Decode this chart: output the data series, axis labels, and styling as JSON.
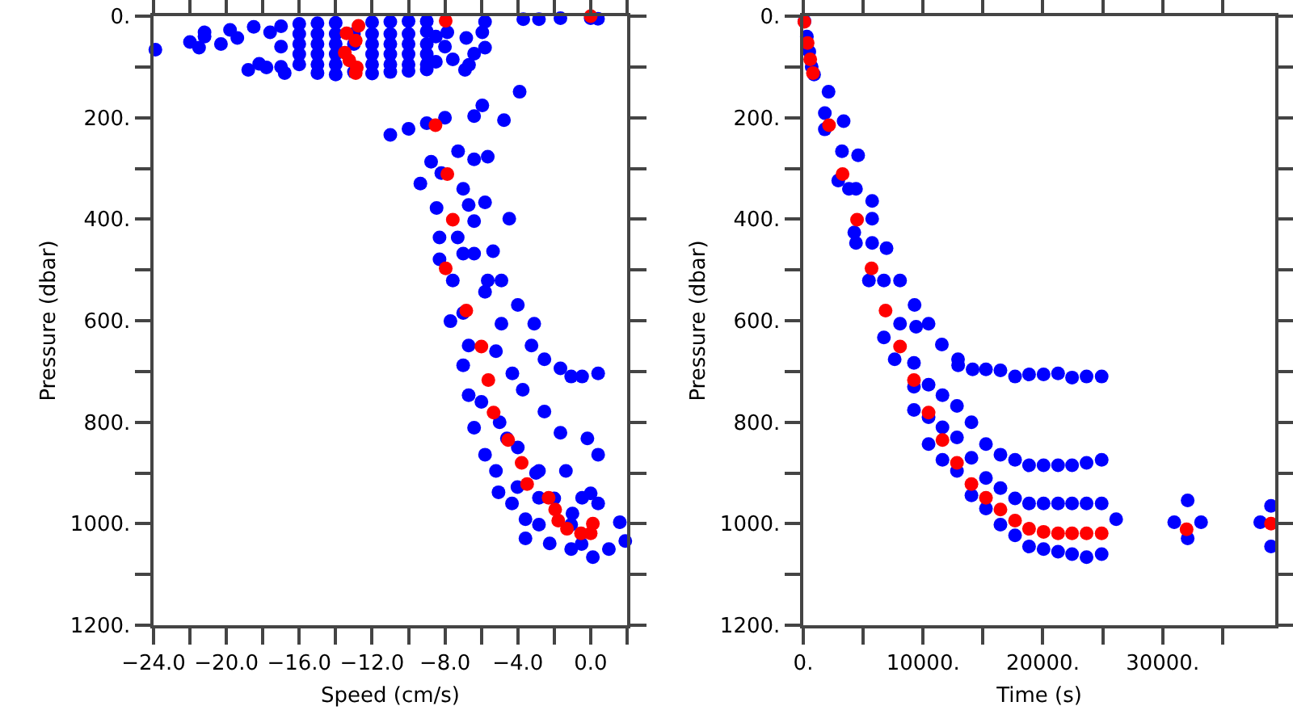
{
  "chart_data": [
    {
      "type": "scatter",
      "xlabel": "Speed (cm/s)",
      "ylabel": "Pressure (dbar)",
      "marker": "circle",
      "xlim": [
        -24,
        2
      ],
      "ylim": [
        1200,
        0
      ],
      "xticks": [
        {
          "value": -24,
          "label": "−24.0"
        },
        {
          "value": -22,
          "label": null
        },
        {
          "value": -20,
          "label": "−20.0"
        },
        {
          "value": -18,
          "label": null
        },
        {
          "value": -16,
          "label": "−16.0"
        },
        {
          "value": -14,
          "label": null
        },
        {
          "value": -12,
          "label": "−12.0"
        },
        {
          "value": -10,
          "label": null
        },
        {
          "value": -8,
          "label": "−8.0"
        },
        {
          "value": -6,
          "label": null
        },
        {
          "value": -4,
          "label": "−4.0"
        },
        {
          "value": -2,
          "label": null
        },
        {
          "value": 0,
          "label": "0.0"
        },
        {
          "value": 2,
          "label": null
        }
      ],
      "yticks": [
        {
          "value": 0,
          "label": "0."
        },
        {
          "value": 100,
          "label": null
        },
        {
          "value": 200,
          "label": "200."
        },
        {
          "value": 300,
          "label": null
        },
        {
          "value": 400,
          "label": "400."
        },
        {
          "value": 500,
          "label": null
        },
        {
          "value": 600,
          "label": "600."
        },
        {
          "value": 700,
          "label": null
        },
        {
          "value": 800,
          "label": "800."
        },
        {
          "value": 900,
          "label": null
        },
        {
          "value": 1000,
          "label": "1000."
        },
        {
          "value": 1100,
          "label": null
        },
        {
          "value": 1200,
          "label": "1200."
        }
      ],
      "series": [
        {
          "color": "#0000ff",
          "x": [
            -23.9,
            -22,
            -21.5,
            -21.2,
            -21.2,
            -20.3,
            -19.8,
            -19.4,
            -18.8,
            -18.5,
            -18.2,
            -17.8,
            -17.6,
            -17,
            -17,
            -17,
            -16.8,
            -16,
            -16,
            -16,
            -16,
            -16,
            -15,
            -15,
            -15,
            -15,
            -15,
            -15,
            -14,
            -14,
            -14,
            -14,
            -14,
            -14,
            -13,
            -13,
            -13,
            -12,
            -12,
            -12,
            -12,
            -12,
            -12,
            -11,
            -11,
            -11,
            -11,
            -11,
            -11,
            -10,
            -10,
            -10,
            -10,
            -10,
            -10,
            -9,
            -9,
            -9,
            -9,
            -9,
            -9,
            -8.5,
            -8.5,
            -8,
            -7.87,
            -7.57,
            -6.83,
            -6.68,
            -6.4,
            -5.8,
            -5.95,
            -6.9,
            -5.8,
            -3.7,
            -2.84,
            -1.66,
            0,
            0.4,
            -11,
            -10,
            -9,
            -8,
            -6.4,
            -5.95,
            -3.9,
            -4.76,
            -9.35,
            -8.76,
            -7.28,
            -6.4,
            -5.65,
            -8.2,
            -7,
            -5.8,
            -8.46,
            -8.3,
            -6.7,
            -6.4,
            -7.3,
            -4.47,
            -8.3,
            -7.57,
            -6.4,
            -5.65,
            -5.36,
            -4.9,
            -7,
            -7.7,
            -7,
            -5.8,
            -4.9,
            -4,
            -3.1,
            -3.25,
            -2.54,
            -6.7,
            -5.2,
            -7,
            -6.7,
            -6.4,
            -5.8,
            -5.2,
            -5.06,
            -4.32,
            -3.58,
            -3.58,
            -2.84,
            -2.25,
            -1.07,
            0.12,
            1,
            1.6,
            1.9,
            0.41,
            0.41,
            -0.18,
            -1.66,
            -2.54,
            -3.73,
            -4.3,
            -1.66,
            -0.47,
            0.41,
            -1.07,
            -2.84,
            -1.36,
            -0.47,
            -2.84,
            -1.07,
            -4.6,
            -4.02,
            -6,
            -5,
            -4,
            -3,
            -2,
            -1,
            0,
            -0.5
          ],
          "values": [
            66,
            51,
            62,
            32,
            40,
            55,
            27,
            43,
            106,
            21,
            94,
            101,
            32,
            20,
            60,
            100,
            112,
            15,
            35,
            55,
            75,
            95,
            14,
            35,
            55,
            75,
            95,
            112,
            13,
            35,
            55,
            75,
            95,
            115,
            35,
            55,
            110,
            12,
            35,
            55,
            75,
            95,
            113,
            11,
            35,
            55,
            75,
            95,
            110,
            10,
            35,
            55,
            75,
            95,
            108,
            10,
            30,
            55,
            75,
            95,
            105,
            40,
            90,
            60,
            32,
            85,
            43,
            96,
            74,
            62,
            32,
            106,
            11,
            6,
            6,
            4,
            4,
            5,
            234,
            222,
            211,
            200,
            197,
            176,
            149,
            205,
            330,
            287,
            266,
            282,
            277,
            309,
            340,
            367,
            378,
            436,
            372,
            404,
            436,
            399,
            479,
            521,
            468,
            521,
            463,
            521,
            468,
            601,
            585,
            543,
            606,
            569,
            606,
            649,
            676,
            649,
            660,
            688,
            747,
            811,
            864,
            896,
            938,
            960,
            991,
            1029,
            1002,
            1039,
            1050,
            1066,
            1050,
            997,
            1034,
            960,
            864,
            832,
            821,
            779,
            736,
            704,
            694,
            710,
            704,
            710,
            896,
            896,
            949,
            949,
            1002,
            832,
            928,
            760,
            800,
            850,
            900,
            950,
            980,
            940,
            1040
          ]
        },
        {
          "color": "#ff0000",
          "x": [
            0,
            -7.96,
            -12.75,
            -13.4,
            -12.9,
            -13.5,
            -13.25,
            -12.84,
            -12.9,
            -8.52,
            -7.87,
            -7.57,
            -7.96,
            -6.83,
            -6,
            -5.62,
            -5.33,
            -4.53,
            -3.79,
            -3.49,
            -2.31,
            -1.95,
            -1.78,
            -1.3,
            -0.53,
            0.12,
            0
          ],
          "values": [
            0,
            9,
            19,
            34,
            48,
            72,
            87,
            101,
            112,
            215,
            311,
            401,
            497,
            580,
            651,
            717,
            781,
            835,
            880,
            922,
            949,
            972,
            994,
            1010,
            1019,
            1000,
            1019
          ]
        }
      ]
    },
    {
      "type": "scatter",
      "xlabel": "Time (s)",
      "ylabel": "Pressure (dbar)",
      "marker": "circle",
      "xlim": [
        0,
        39400
      ],
      "ylim": [
        1200,
        0
      ],
      "xticks": [
        {
          "value": 0,
          "label": "0."
        },
        {
          "value": 5000,
          "label": null
        },
        {
          "value": 10000,
          "label": "10000."
        },
        {
          "value": 15000,
          "label": null
        },
        {
          "value": 20000,
          "label": "20000."
        },
        {
          "value": 25000,
          "label": null
        },
        {
          "value": 30000,
          "label": "30000."
        },
        {
          "value": 35000,
          "label": null
        }
      ],
      "yticks": [
        {
          "value": 0,
          "label": "0."
        },
        {
          "value": 100,
          "label": null
        },
        {
          "value": 200,
          "label": "200."
        },
        {
          "value": 300,
          "label": null
        },
        {
          "value": 400,
          "label": "400."
        },
        {
          "value": 500,
          "label": null
        },
        {
          "value": 600,
          "label": "600."
        },
        {
          "value": 700,
          "label": null
        },
        {
          "value": 800,
          "label": "800."
        },
        {
          "value": 900,
          "label": null
        },
        {
          "value": 1000,
          "label": "1000."
        },
        {
          "value": 1100,
          "label": null
        },
        {
          "value": 1200,
          "label": "1200."
        }
      ],
      "series": [
        {
          "color": "#0000ff",
          "x": [
            100,
            300,
            500,
            700,
            900,
            2110,
            1800,
            3370,
            1800,
            3230,
            4580,
            2920,
            3810,
            4400,
            5750,
            4260,
            5750,
            4400,
            5480,
            6950,
            5750,
            6730,
            8080,
            9290,
            10460,
            11570,
            12920,
            6730,
            8080,
            9420,
            7630,
            9240,
            9240,
            9240,
            10460,
            10460,
            10460,
            11620,
            11620,
            11620,
            12830,
            12830,
            12830,
            14040,
            14040,
            14040,
            15250,
            15250,
            15250,
            16460,
            16460,
            16460,
            17680,
            17680,
            17680,
            18850,
            18850,
            18850,
            20060,
            20060,
            20060,
            21270,
            21270,
            21270,
            22440,
            22440,
            22440,
            23650,
            23650,
            23650,
            24910,
            24910,
            24910,
            12930,
            14140,
            15250,
            16460,
            17680,
            18850,
            20060,
            21270,
            22440,
            23650,
            24910,
            26120,
            30970,
            32090,
            33210,
            32090,
            38150,
            39050,
            39050
          ],
          "values": [
            10,
            40,
            70,
            100,
            115,
            149,
            191,
            207,
            223,
            266,
            274,
            324,
            340,
            340,
            364,
            426,
            399,
            447,
            521,
            457,
            447,
            521,
            521,
            569,
            606,
            647,
            676,
            633,
            606,
            612,
            676,
            683,
            730,
            776,
            726,
            790,
            843,
            747,
            810,
            874,
            768,
            830,
            896,
            800,
            870,
            944,
            843,
            910,
            970,
            864,
            930,
            1002,
            874,
            950,
            1023,
            885,
            960,
            1045,
            885,
            960,
            1050,
            885,
            960,
            1055,
            885,
            960,
            1060,
            880,
            960,
            1066,
            874,
            960,
            1060,
            688,
            696,
            696,
            698,
            710,
            706,
            706,
            704,
            712,
            710,
            710,
            991,
            997,
            954,
            997,
            1029,
            997,
            965,
            1045
          ]
        },
        {
          "color": "#ff0000",
          "x": [
            90,
            360,
            580,
            810,
            2150,
            3280,
            4490,
            5700,
            6870,
            8080,
            9240,
            10460,
            11620,
            12830,
            14040,
            15250,
            16460,
            17680,
            18850,
            20060,
            21270,
            22440,
            23650,
            24910,
            32000,
            39050
          ],
          "values": [
            11,
            53,
            85,
            112,
            215,
            311,
            401,
            497,
            580,
            651,
            717,
            781,
            835,
            880,
            922,
            949,
            972,
            994,
            1010,
            1016,
            1019,
            1019,
            1019,
            1019,
            1011,
            1000
          ]
        }
      ]
    }
  ]
}
